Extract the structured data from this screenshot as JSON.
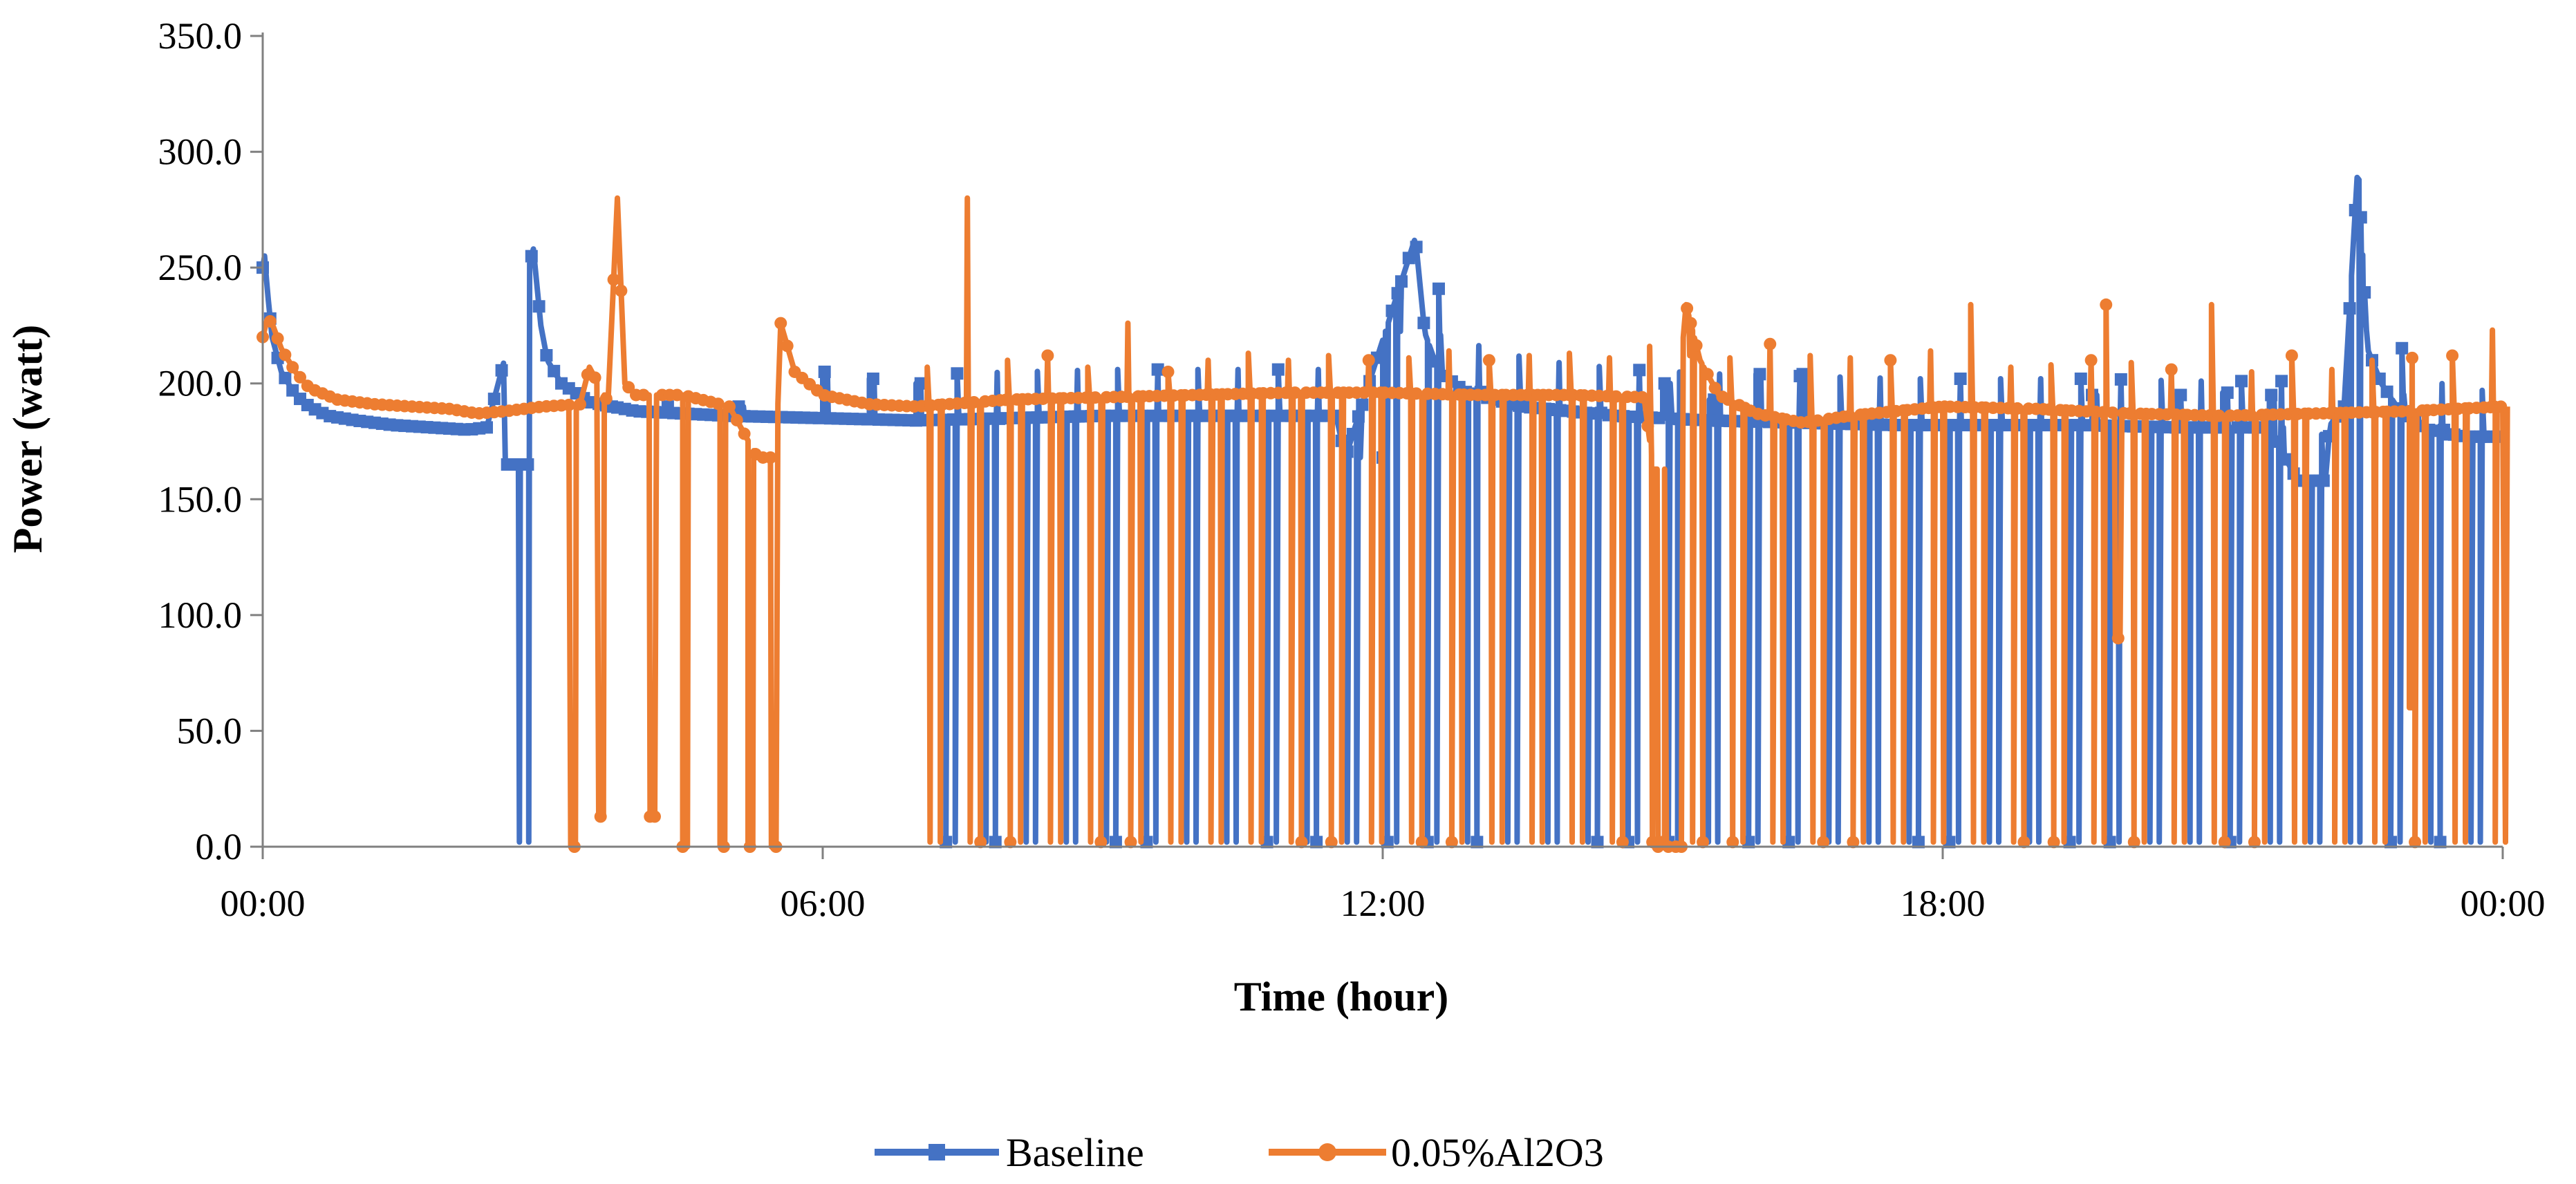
{
  "chart_data": {
    "type": "line",
    "xlabel": "Time (hour)",
    "ylabel": "Power (watt)",
    "xlim": [
      0,
      24
    ],
    "ylim": [
      0,
      350
    ],
    "yticks": [
      0,
      50,
      100,
      150,
      200,
      250,
      300,
      350
    ],
    "ytick_labels": [
      "0.0",
      "50.0",
      "100.0",
      "150.0",
      "200.0",
      "250.0",
      "300.0",
      "350.0"
    ],
    "xticks": [
      0,
      6,
      12,
      18,
      24
    ],
    "xtick_labels": [
      "00:00",
      "06:00",
      "12:00",
      "18:00",
      "00:00"
    ],
    "legend_position": "bottom",
    "series": [
      {
        "name": "Baseline",
        "color": "#4472C4",
        "marker": "square",
        "baseline_profile": [
          [
            0,
            250
          ],
          [
            0.02,
            255
          ],
          [
            0.05,
            240
          ],
          [
            0.1,
            220
          ],
          [
            0.2,
            205
          ],
          [
            0.35,
            195
          ],
          [
            0.5,
            190
          ],
          [
            0.7,
            186
          ],
          [
            1.0,
            184
          ],
          [
            1.4,
            182
          ],
          [
            1.8,
            181
          ],
          [
            2.2,
            180
          ],
          [
            2.4,
            181
          ],
          [
            2.9,
            258
          ],
          [
            2.98,
            225
          ],
          [
            3.05,
            210
          ],
          [
            3.2,
            200
          ],
          [
            3.5,
            192
          ],
          [
            4.0,
            188
          ],
          [
            5.0,
            186
          ],
          [
            6.0,
            185
          ],
          [
            7.0,
            184
          ],
          [
            8.0,
            185
          ],
          [
            9.0,
            186
          ],
          [
            10.0,
            186
          ],
          [
            11.0,
            186
          ],
          [
            11.5,
            186
          ],
          [
            11.6,
            168
          ],
          [
            12.35,
            263
          ],
          [
            12.45,
            222
          ],
          [
            12.6,
            205
          ],
          [
            12.9,
            196
          ],
          [
            13.5,
            190
          ],
          [
            14.5,
            186
          ],
          [
            15.5,
            184
          ],
          [
            16.5,
            183
          ],
          [
            17.5,
            182
          ],
          [
            18.5,
            182
          ],
          [
            19.5,
            182
          ],
          [
            20.5,
            181
          ],
          [
            21.5,
            181
          ],
          [
            21.8,
            158
          ],
          [
            22.1,
            158
          ],
          [
            22.15,
            182
          ],
          [
            22.3,
            190
          ],
          [
            22.45,
            296
          ],
          [
            22.55,
            215
          ],
          [
            22.7,
            200
          ],
          [
            22.9,
            188
          ],
          [
            23.2,
            180
          ],
          [
            23.6,
            177
          ],
          [
            24.0,
            177
          ]
        ],
        "off_periods": [
          [
            2.6,
            2.85,
            165
          ],
          [
            3.7,
            3.75,
            190
          ],
          [
            4.3,
            4.35,
            190
          ],
          [
            5.1,
            5.15,
            190
          ],
          [
            6.0,
            6.05,
            205
          ],
          [
            6.5,
            6.55,
            202
          ],
          [
            7.0,
            7.05,
            200
          ],
          [
            12.0,
            12.05,
            168
          ],
          [
            15.0,
            15.08,
            200
          ],
          [
            15.5,
            15.55,
            193
          ],
          [
            16.0,
            16.05,
            204
          ],
          [
            16.5,
            16.55,
            204
          ],
          [
            19.6,
            19.65,
            195
          ],
          [
            20.5,
            20.55,
            195
          ],
          [
            21.0,
            21.05,
            196
          ],
          [
            21.5,
            21.55,
            195
          ],
          [
            23.4,
            23.45,
            178
          ]
        ]
      },
      {
        "name": "0.05%Al2O3",
        "color": "#ED7D31",
        "marker": "circle",
        "baseline_profile": [
          [
            0,
            220
          ],
          [
            0.05,
            228
          ],
          [
            0.1,
            226
          ],
          [
            0.2,
            215
          ],
          [
            0.35,
            205
          ],
          [
            0.5,
            198
          ],
          [
            0.8,
            193
          ],
          [
            1.2,
            191
          ],
          [
            1.6,
            190
          ],
          [
            2.0,
            189
          ],
          [
            2.3,
            187
          ],
          [
            2.6,
            188
          ],
          [
            3.0,
            190
          ],
          [
            3.4,
            191
          ],
          [
            3.5,
            207
          ],
          [
            3.7,
            192
          ],
          [
            3.8,
            280
          ],
          [
            3.88,
            200
          ],
          [
            4.0,
            195
          ],
          [
            4.5,
            195
          ],
          [
            5.0,
            190
          ],
          [
            5.3,
            168
          ],
          [
            5.5,
            168
          ],
          [
            5.55,
            226
          ],
          [
            5.7,
            205
          ],
          [
            6.0,
            195
          ],
          [
            6.5,
            191
          ],
          [
            7.0,
            190
          ],
          [
            8.0,
            193
          ],
          [
            9.0,
            194
          ],
          [
            10.0,
            195
          ],
          [
            11.0,
            196
          ],
          [
            12.0,
            196
          ],
          [
            13.0,
            195
          ],
          [
            14.0,
            195
          ],
          [
            14.8,
            194
          ],
          [
            14.9,
            163
          ],
          [
            15.1,
            163
          ],
          [
            15.25,
            234
          ],
          [
            15.4,
            210
          ],
          [
            15.6,
            195
          ],
          [
            16.0,
            187
          ],
          [
            16.5,
            183
          ],
          [
            17.0,
            186
          ],
          [
            18.0,
            190
          ],
          [
            19.0,
            189
          ],
          [
            20.0,
            187
          ],
          [
            21.0,
            186
          ],
          [
            22.0,
            187
          ],
          [
            23.0,
            188
          ],
          [
            24.0,
            190
          ]
        ],
        "cycle_peaks": [
          207,
          280,
          210,
          212,
          207,
          226,
          205,
          210,
          213,
          210,
          212,
          210,
          211,
          214,
          210,
          212,
          213,
          211,
          216,
          212,
          211,
          217,
          212,
          211,
          210,
          214,
          234,
          207,
          208,
          210,
          209,
          206,
          234,
          205,
          212,
          206,
          210,
          211,
          212,
          223
        ],
        "off_periods": [
          [
            3.3,
            3.35,
            0
          ],
          [
            3.6,
            3.65,
            13
          ],
          [
            4.15,
            4.2,
            13
          ],
          [
            4.5,
            4.55,
            0
          ],
          [
            4.9,
            4.95,
            0
          ],
          [
            5.2,
            5.25,
            0
          ],
          [
            5.45,
            5.5,
            0
          ],
          [
            14.95,
            15.2,
            0
          ],
          [
            19.85,
            19.9,
            90
          ],
          [
            23.0,
            23.05,
            60
          ]
        ]
      }
    ],
    "legend": [
      {
        "label": "Baseline",
        "color": "#4472C4",
        "marker": "square"
      },
      {
        "label": "0.05%Al2O3",
        "color": "#ED7D31",
        "marker": "circle"
      }
    ]
  }
}
